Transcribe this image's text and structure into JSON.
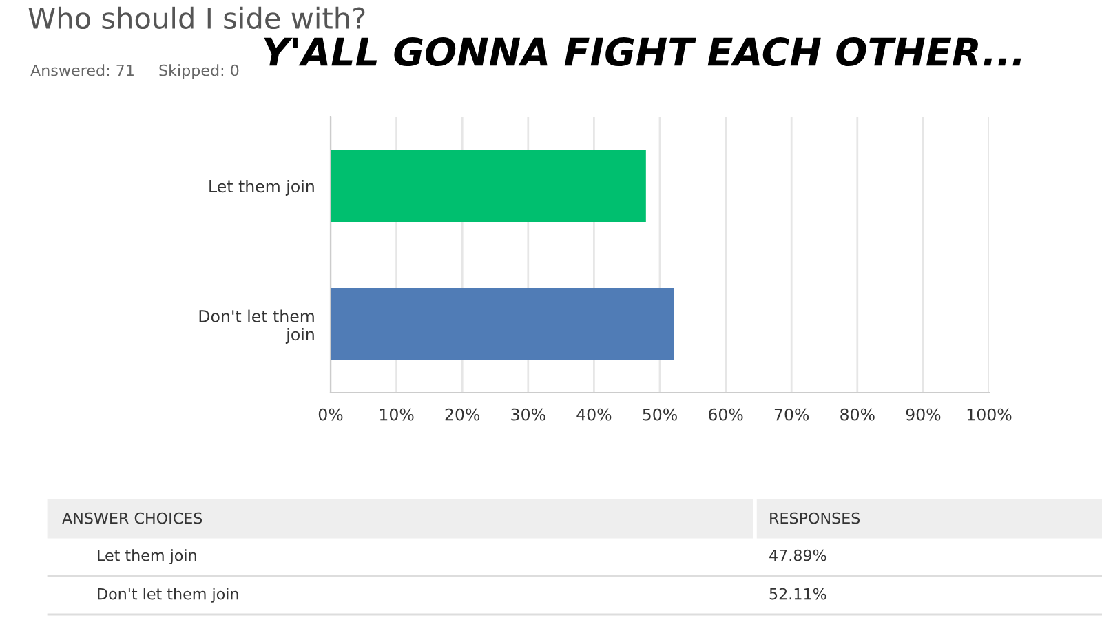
{
  "chart_data": {
    "type": "bar",
    "orientation": "horizontal",
    "title": "Who should I side with?",
    "annotations": [
      "Answered: 71",
      "Skipped: 0",
      "Y'ALL GONNA FIGHT EACH OTHER...",
      "ANSWER CHOICES",
      "RESPONSES",
      "47.89%",
      "52.11%"
    ],
    "categories": [
      "Let them join",
      "Don't let them join"
    ],
    "values": [
      47.89,
      52.11
    ],
    "colors": [
      "#00bf6f",
      "#507cb6"
    ],
    "xlim": [
      0,
      100
    ],
    "xticks": [
      {
        "value": 0,
        "label": "0%"
      },
      {
        "value": 10,
        "label": "10%"
      },
      {
        "value": 20,
        "label": "20%"
      },
      {
        "value": 30,
        "label": "30%"
      },
      {
        "value": 40,
        "label": "40%"
      },
      {
        "value": 50,
        "label": "50%"
      },
      {
        "value": 60,
        "label": "60%"
      },
      {
        "value": 70,
        "label": "70%"
      },
      {
        "value": 80,
        "label": "80%"
      },
      {
        "value": 90,
        "label": "90%"
      },
      {
        "value": 100,
        "label": "100%"
      }
    ],
    "grid": "x"
  }
}
